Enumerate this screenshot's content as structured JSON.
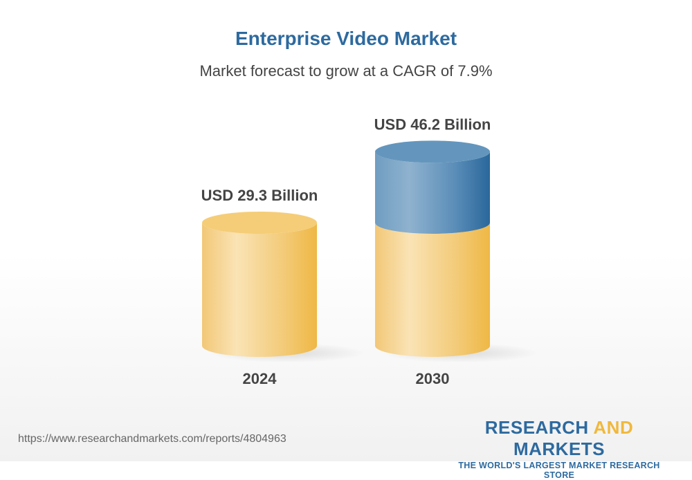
{
  "title": "Enterprise Video Market",
  "subtitle": "Market forecast to grow at a CAGR of 7.9%",
  "chart_data": {
    "type": "bar",
    "style": "3d-cylinder",
    "categories": [
      "2024",
      "2030"
    ],
    "values": [
      29.3,
      46.2
    ],
    "data_labels": [
      "USD 29.3 Billion",
      "USD 46.2 Billion"
    ],
    "cagr": "7.9%",
    "colors": {
      "base": "#f0b83d",
      "growth": "#2d6a9f"
    }
  },
  "footer": {
    "url": "https://www.researchandmarkets.com/reports/4804963",
    "logo_part1": "RESEARCH ",
    "logo_part2": "AND",
    "logo_part3": " MARKETS",
    "tagline": "THE WORLD'S LARGEST MARKET RESEARCH STORE"
  }
}
